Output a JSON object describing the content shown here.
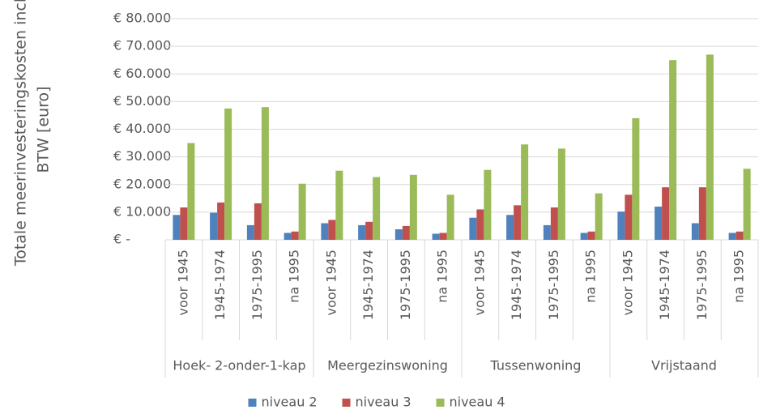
{
  "chart_data": {
    "type": "bar",
    "ylabel": [
      "Totale meerinvesteringskosten incl.",
      "BTW [euro]"
    ],
    "groups": [
      "Hoek- 2-onder-1-kap",
      "Meergezinswoning",
      "Tussenwoning",
      "Vrijstaand"
    ],
    "categories": [
      "voor 1945",
      "1945-1974",
      "1975-1995",
      "na 1995",
      "voor 1945",
      "1945-1974",
      "1975-1995",
      "na 1995",
      "voor 1945",
      "1945-1974",
      "1975-1995",
      "na 1995",
      "voor 1945",
      "1945-1974",
      "1975-1995",
      "na 1995"
    ],
    "series": [
      {
        "name": "niveau 2",
        "color": "#4f81bd",
        "values": [
          9000,
          9800,
          5300,
          2500,
          6000,
          5300,
          3800,
          2200,
          8000,
          9000,
          5300,
          2500,
          10200,
          12000,
          6000,
          2500
        ]
      },
      {
        "name": "niveau 3",
        "color": "#c0504d",
        "values": [
          11700,
          13500,
          13200,
          3000,
          7200,
          6500,
          5000,
          2500,
          11000,
          12500,
          11700,
          3000,
          16300,
          19000,
          19000,
          3000
        ]
      },
      {
        "name": "niveau 4",
        "color": "#9bbb59",
        "values": [
          35000,
          47500,
          48000,
          20300,
          25000,
          22700,
          23500,
          16300,
          25300,
          34500,
          33000,
          16800,
          44000,
          65000,
          67000,
          25700
        ]
      }
    ],
    "ylim": [
      0,
      80000
    ],
    "yticks": [
      {
        "value": 0,
        "label": "€ -"
      },
      {
        "value": 10000,
        "label": "€ 10.000"
      },
      {
        "value": 20000,
        "label": "€ 20.000"
      },
      {
        "value": 30000,
        "label": "€ 30.000"
      },
      {
        "value": 40000,
        "label": "€ 40.000"
      },
      {
        "value": 50000,
        "label": "€ 50.000"
      },
      {
        "value": 60000,
        "label": "€ 60.000"
      },
      {
        "value": 70000,
        "label": "€ 70.000"
      },
      {
        "value": 80000,
        "label": "€ 80.000"
      }
    ],
    "grid": true,
    "legend": "bottom"
  }
}
